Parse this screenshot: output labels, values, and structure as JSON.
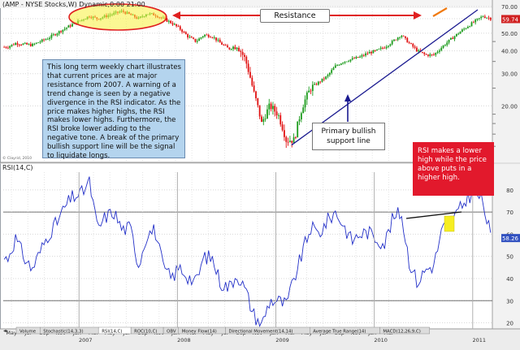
{
  "chart_data": [
    {
      "type": "candlestick",
      "title": "(AMP - NYSE Stocks,W) Dynamic,0:00 21:00",
      "price_tag": "59.74",
      "y_scale": "log",
      "ylim": [
        10,
        70
      ],
      "y_ticks": [
        "70.00",
        "60.00",
        "50.00",
        "40.00",
        "30.00",
        "20.00"
      ],
      "x_ticks": [
        "May",
        "Jul",
        "Sep",
        "Nov",
        "Jan",
        "Mar",
        "May",
        "Jul",
        "Sep",
        "Nov",
        "Jan",
        "Mar",
        "May",
        "Jul",
        "Sep",
        "Nov",
        "Jan",
        "Mar",
        "May",
        "Jul",
        "Sep",
        "Nov",
        "Jan",
        "Mar"
      ],
      "year_labels": [
        "2007",
        "2008",
        "2009",
        "2010",
        "2011"
      ],
      "watermark": "© Clayrid, 2010",
      "series": [
        {
          "close": [
            {
              "date": "2006-04",
              "value": 42
            },
            {
              "date": "2006-05",
              "value": 44
            },
            {
              "date": "2006-07",
              "value": 43
            },
            {
              "date": "2006-09",
              "value": 47
            },
            {
              "date": "2006-11",
              "value": 53
            },
            {
              "date": "2007-01",
              "value": 59
            },
            {
              "date": "2007-02",
              "value": 62
            },
            {
              "date": "2007-03",
              "value": 60
            },
            {
              "date": "2007-05",
              "value": 64
            },
            {
              "date": "2007-06",
              "value": 66
            },
            {
              "date": "2007-07",
              "value": 63
            },
            {
              "date": "2007-08",
              "value": 60
            },
            {
              "date": "2007-09",
              "value": 64
            },
            {
              "date": "2007-10",
              "value": 63
            },
            {
              "date": "2007-11",
              "value": 60
            },
            {
              "date": "2007-12",
              "value": 57
            },
            {
              "date": "2008-01",
              "value": 53
            },
            {
              "date": "2008-02",
              "value": 48
            },
            {
              "date": "2008-03",
              "value": 45
            },
            {
              "date": "2008-04",
              "value": 49
            },
            {
              "date": "2008-05",
              "value": 48
            },
            {
              "date": "2008-06",
              "value": 44
            },
            {
              "date": "2008-07",
              "value": 41
            },
            {
              "date": "2008-08",
              "value": 43
            },
            {
              "date": "2008-09",
              "value": 36
            },
            {
              "date": "2008-10",
              "value": 24
            },
            {
              "date": "2008-11",
              "value": 16
            },
            {
              "date": "2008-12",
              "value": 20
            },
            {
              "date": "2009-01",
              "value": 18
            },
            {
              "date": "2009-02",
              "value": 13
            },
            {
              "date": "2009-03",
              "value": 13
            },
            {
              "date": "2009-04",
              "value": 20
            },
            {
              "date": "2009-05",
              "value": 25
            },
            {
              "date": "2009-06",
              "value": 27
            },
            {
              "date": "2009-07",
              "value": 29
            },
            {
              "date": "2009-08",
              "value": 33
            },
            {
              "date": "2009-09",
              "value": 35
            },
            {
              "date": "2009-10",
              "value": 36
            },
            {
              "date": "2009-11",
              "value": 37
            },
            {
              "date": "2009-12",
              "value": 39
            },
            {
              "date": "2010-01",
              "value": 40
            },
            {
              "date": "2010-02",
              "value": 42
            },
            {
              "date": "2010-03",
              "value": 45
            },
            {
              "date": "2010-04",
              "value": 49
            },
            {
              "date": "2010-05",
              "value": 44
            },
            {
              "date": "2010-06",
              "value": 40
            },
            {
              "date": "2010-07",
              "value": 38
            },
            {
              "date": "2010-08",
              "value": 38
            },
            {
              "date": "2010-09",
              "value": 42
            },
            {
              "date": "2010-10",
              "value": 46
            },
            {
              "date": "2010-11",
              "value": 50
            },
            {
              "date": "2010-12",
              "value": 54
            },
            {
              "date": "2011-01",
              "value": 58
            },
            {
              "date": "2011-02",
              "value": 62
            },
            {
              "date": "2011-03",
              "value": 60
            }
          ]
        }
      ]
    },
    {
      "type": "line",
      "title": "RSI(14,C)",
      "price_tag": "58.26",
      "ylim": [
        18,
        88
      ],
      "y_ticks": [
        "80",
        "70",
        "60",
        "50",
        "40",
        "30",
        "20"
      ],
      "series": [
        {
          "name": "RSI(14,C)",
          "values": [
            {
              "date": "2006-04",
              "value": 49
            },
            {
              "date": "2006-05",
              "value": 58
            },
            {
              "date": "2006-06",
              "value": 50
            },
            {
              "date": "2006-07",
              "value": 44
            },
            {
              "date": "2006-08",
              "value": 52
            },
            {
              "date": "2006-09",
              "value": 60
            },
            {
              "date": "2006-10",
              "value": 65
            },
            {
              "date": "2006-11",
              "value": 72
            },
            {
              "date": "2006-12",
              "value": 77
            },
            {
              "date": "2007-01",
              "value": 78
            },
            {
              "date": "2007-02",
              "value": 84
            },
            {
              "date": "2007-03",
              "value": 62
            },
            {
              "date": "2007-04",
              "value": 68
            },
            {
              "date": "2007-05",
              "value": 70
            },
            {
              "date": "2007-06",
              "value": 62
            },
            {
              "date": "2007-07",
              "value": 63
            },
            {
              "date": "2007-08",
              "value": 46
            },
            {
              "date": "2007-09",
              "value": 60
            },
            {
              "date": "2007-10",
              "value": 62
            },
            {
              "date": "2007-11",
              "value": 45
            },
            {
              "date": "2007-12",
              "value": 40
            },
            {
              "date": "2008-01",
              "value": 45
            },
            {
              "date": "2008-02",
              "value": 41
            },
            {
              "date": "2008-03",
              "value": 38
            },
            {
              "date": "2008-04",
              "value": 50
            },
            {
              "date": "2008-05",
              "value": 49
            },
            {
              "date": "2008-06",
              "value": 38
            },
            {
              "date": "2008-07",
              "value": 36
            },
            {
              "date": "2008-08",
              "value": 42
            },
            {
              "date": "2008-09",
              "value": 35
            },
            {
              "date": "2008-10",
              "value": 24
            },
            {
              "date": "2008-11",
              "value": 19
            },
            {
              "date": "2008-12",
              "value": 30
            },
            {
              "date": "2009-01",
              "value": 30
            },
            {
              "date": "2009-02",
              "value": 28
            },
            {
              "date": "2009-03",
              "value": 40
            },
            {
              "date": "2009-04",
              "value": 52
            },
            {
              "date": "2009-05",
              "value": 63
            },
            {
              "date": "2009-06",
              "value": 60
            },
            {
              "date": "2009-07",
              "value": 66
            },
            {
              "date": "2009-08",
              "value": 70
            },
            {
              "date": "2009-09",
              "value": 64
            },
            {
              "date": "2009-10",
              "value": 57
            },
            {
              "date": "2009-11",
              "value": 60
            },
            {
              "date": "2009-12",
              "value": 61
            },
            {
              "date": "2010-01",
              "value": 58
            },
            {
              "date": "2010-02",
              "value": 56
            },
            {
              "date": "2010-03",
              "value": 67
            },
            {
              "date": "2010-04",
              "value": 70
            },
            {
              "date": "2010-05",
              "value": 48
            },
            {
              "date": "2010-06",
              "value": 38
            },
            {
              "date": "2010-07",
              "value": 44
            },
            {
              "date": "2010-08",
              "value": 46
            },
            {
              "date": "2010-09",
              "value": 62
            },
            {
              "date": "2010-10",
              "value": 66
            },
            {
              "date": "2010-11",
              "value": 70
            },
            {
              "date": "2010-12",
              "value": 76
            },
            {
              "date": "2011-01",
              "value": 80
            },
            {
              "date": "2011-02",
              "value": 74
            },
            {
              "date": "2011-03",
              "value": 58
            }
          ]
        }
      ]
    }
  ],
  "annotations": {
    "note": "This long term weekly chart illustrates that current prices are at major resistance from 2007. A warning of a trend change is seen by a negative divergence in the RSI indicator.  As the price makes higher highs, the RSI makes lower highs. Furthermore, the RSI broke lower adding to the negative tone. A break of the primary bullish support line will be the signal to liquidate longs.",
    "resistance": "Resistance",
    "support_line": "Primary bullish support line",
    "rsi_note": "RSI makes a lower high while the price above puts in a higher high."
  },
  "tabs": [
    "Volume",
    "Stochastic(14,3,3)",
    "RSI(14,C)",
    "ROC(10,C)",
    "OBV",
    "Money Flow(14)",
    "Directional Movement(14,14)",
    "Average True Range(14)",
    "MACD(12,26,9,C)"
  ],
  "colors": {
    "up_candle": "#1a9a1a",
    "down_candle": "#e01010",
    "rsi_line": "#2330c8",
    "trend_line": "#1a1a90",
    "resistance_arrow": "#e02020",
    "highlight_ellipse": "#f7f13a",
    "price_tag_bg": "#d02020",
    "rsi_tag_bg": "#3050c0"
  }
}
